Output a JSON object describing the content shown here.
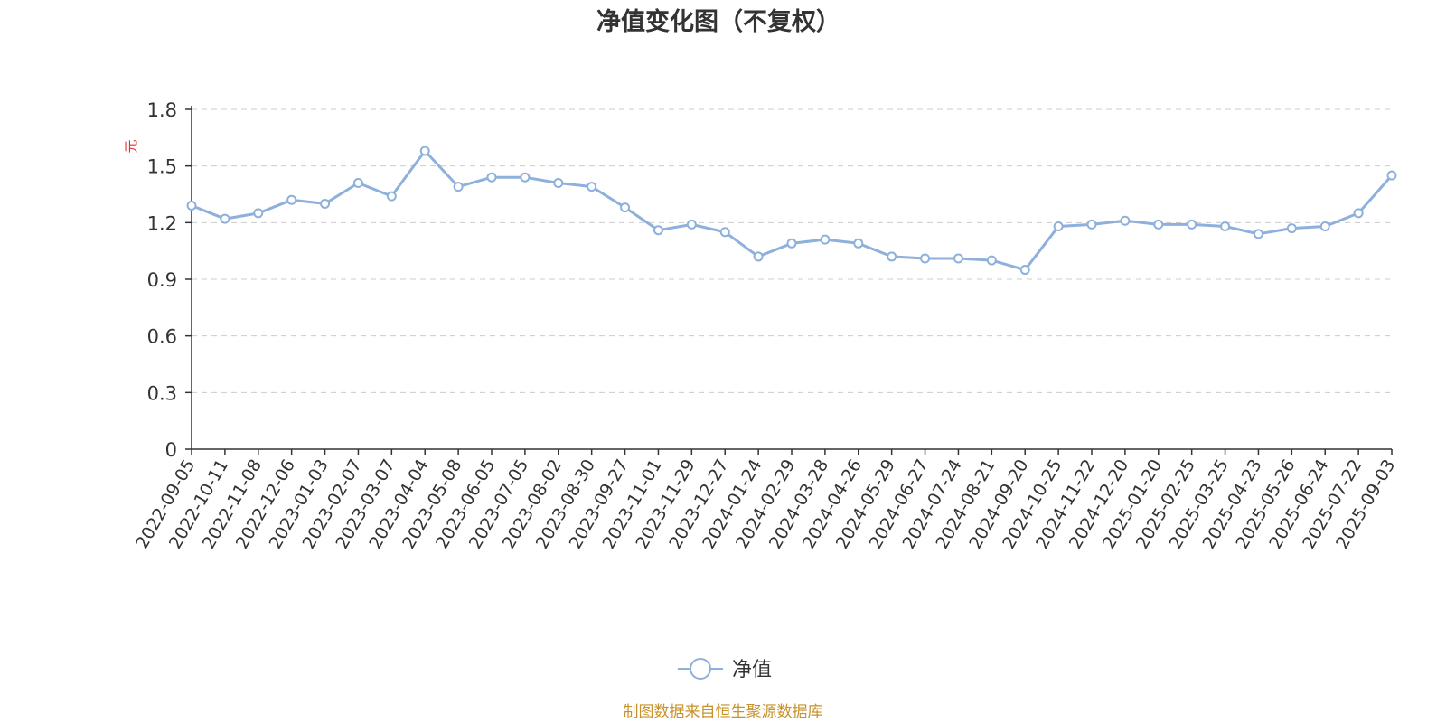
{
  "colors": {
    "series": "#8eb0dc",
    "unit": "#e03030",
    "source": "#c8922a",
    "axis": "#333333",
    "grid": "#cccccc"
  },
  "legend": {
    "label": "净值",
    "icon": "circle-line-icon",
    "position": "bottom-center"
  },
  "source_note": "制图数据来自恒生聚源数据库",
  "chart_data": {
    "type": "line",
    "title": "净值变化图（不复权）",
    "ylabel": "元",
    "xlabel": "",
    "ylim": [
      0,
      1.8
    ],
    "yticks": [
      "0",
      "0.3",
      "0.6",
      "0.9",
      "1.2",
      "1.5",
      "1.8"
    ],
    "grid": true,
    "categories": [
      "2022-09-05",
      "2022-10-11",
      "2022-11-08",
      "2022-12-06",
      "2023-01-03",
      "2023-02-07",
      "2023-03-07",
      "2023-04-04",
      "2023-05-08",
      "2023-06-05",
      "2023-07-05",
      "2023-08-02",
      "2023-08-30",
      "2023-09-27",
      "2023-11-01",
      "2023-11-29",
      "2023-12-27",
      "2024-01-24",
      "2024-02-29",
      "2024-03-28",
      "2024-04-26",
      "2024-05-29",
      "2024-06-27",
      "2024-07-24",
      "2024-08-21",
      "2024-09-20",
      "2024-10-25",
      "2024-11-22",
      "2024-12-20",
      "2025-01-20",
      "2025-02-25",
      "2025-03-25",
      "2025-04-23",
      "2025-05-26",
      "2025-06-24",
      "2025-07-22",
      "2025-09-03"
    ],
    "series": [
      {
        "name": "净值",
        "values": [
          1.29,
          1.22,
          1.25,
          1.32,
          1.3,
          1.41,
          1.34,
          1.58,
          1.39,
          1.44,
          1.44,
          1.41,
          1.39,
          1.28,
          1.16,
          1.19,
          1.15,
          1.02,
          1.09,
          1.11,
          1.09,
          1.02,
          1.01,
          1.01,
          1.0,
          0.95,
          1.18,
          1.19,
          1.21,
          1.19,
          1.19,
          1.18,
          1.14,
          1.17,
          1.18,
          1.25,
          1.45
        ]
      }
    ]
  }
}
